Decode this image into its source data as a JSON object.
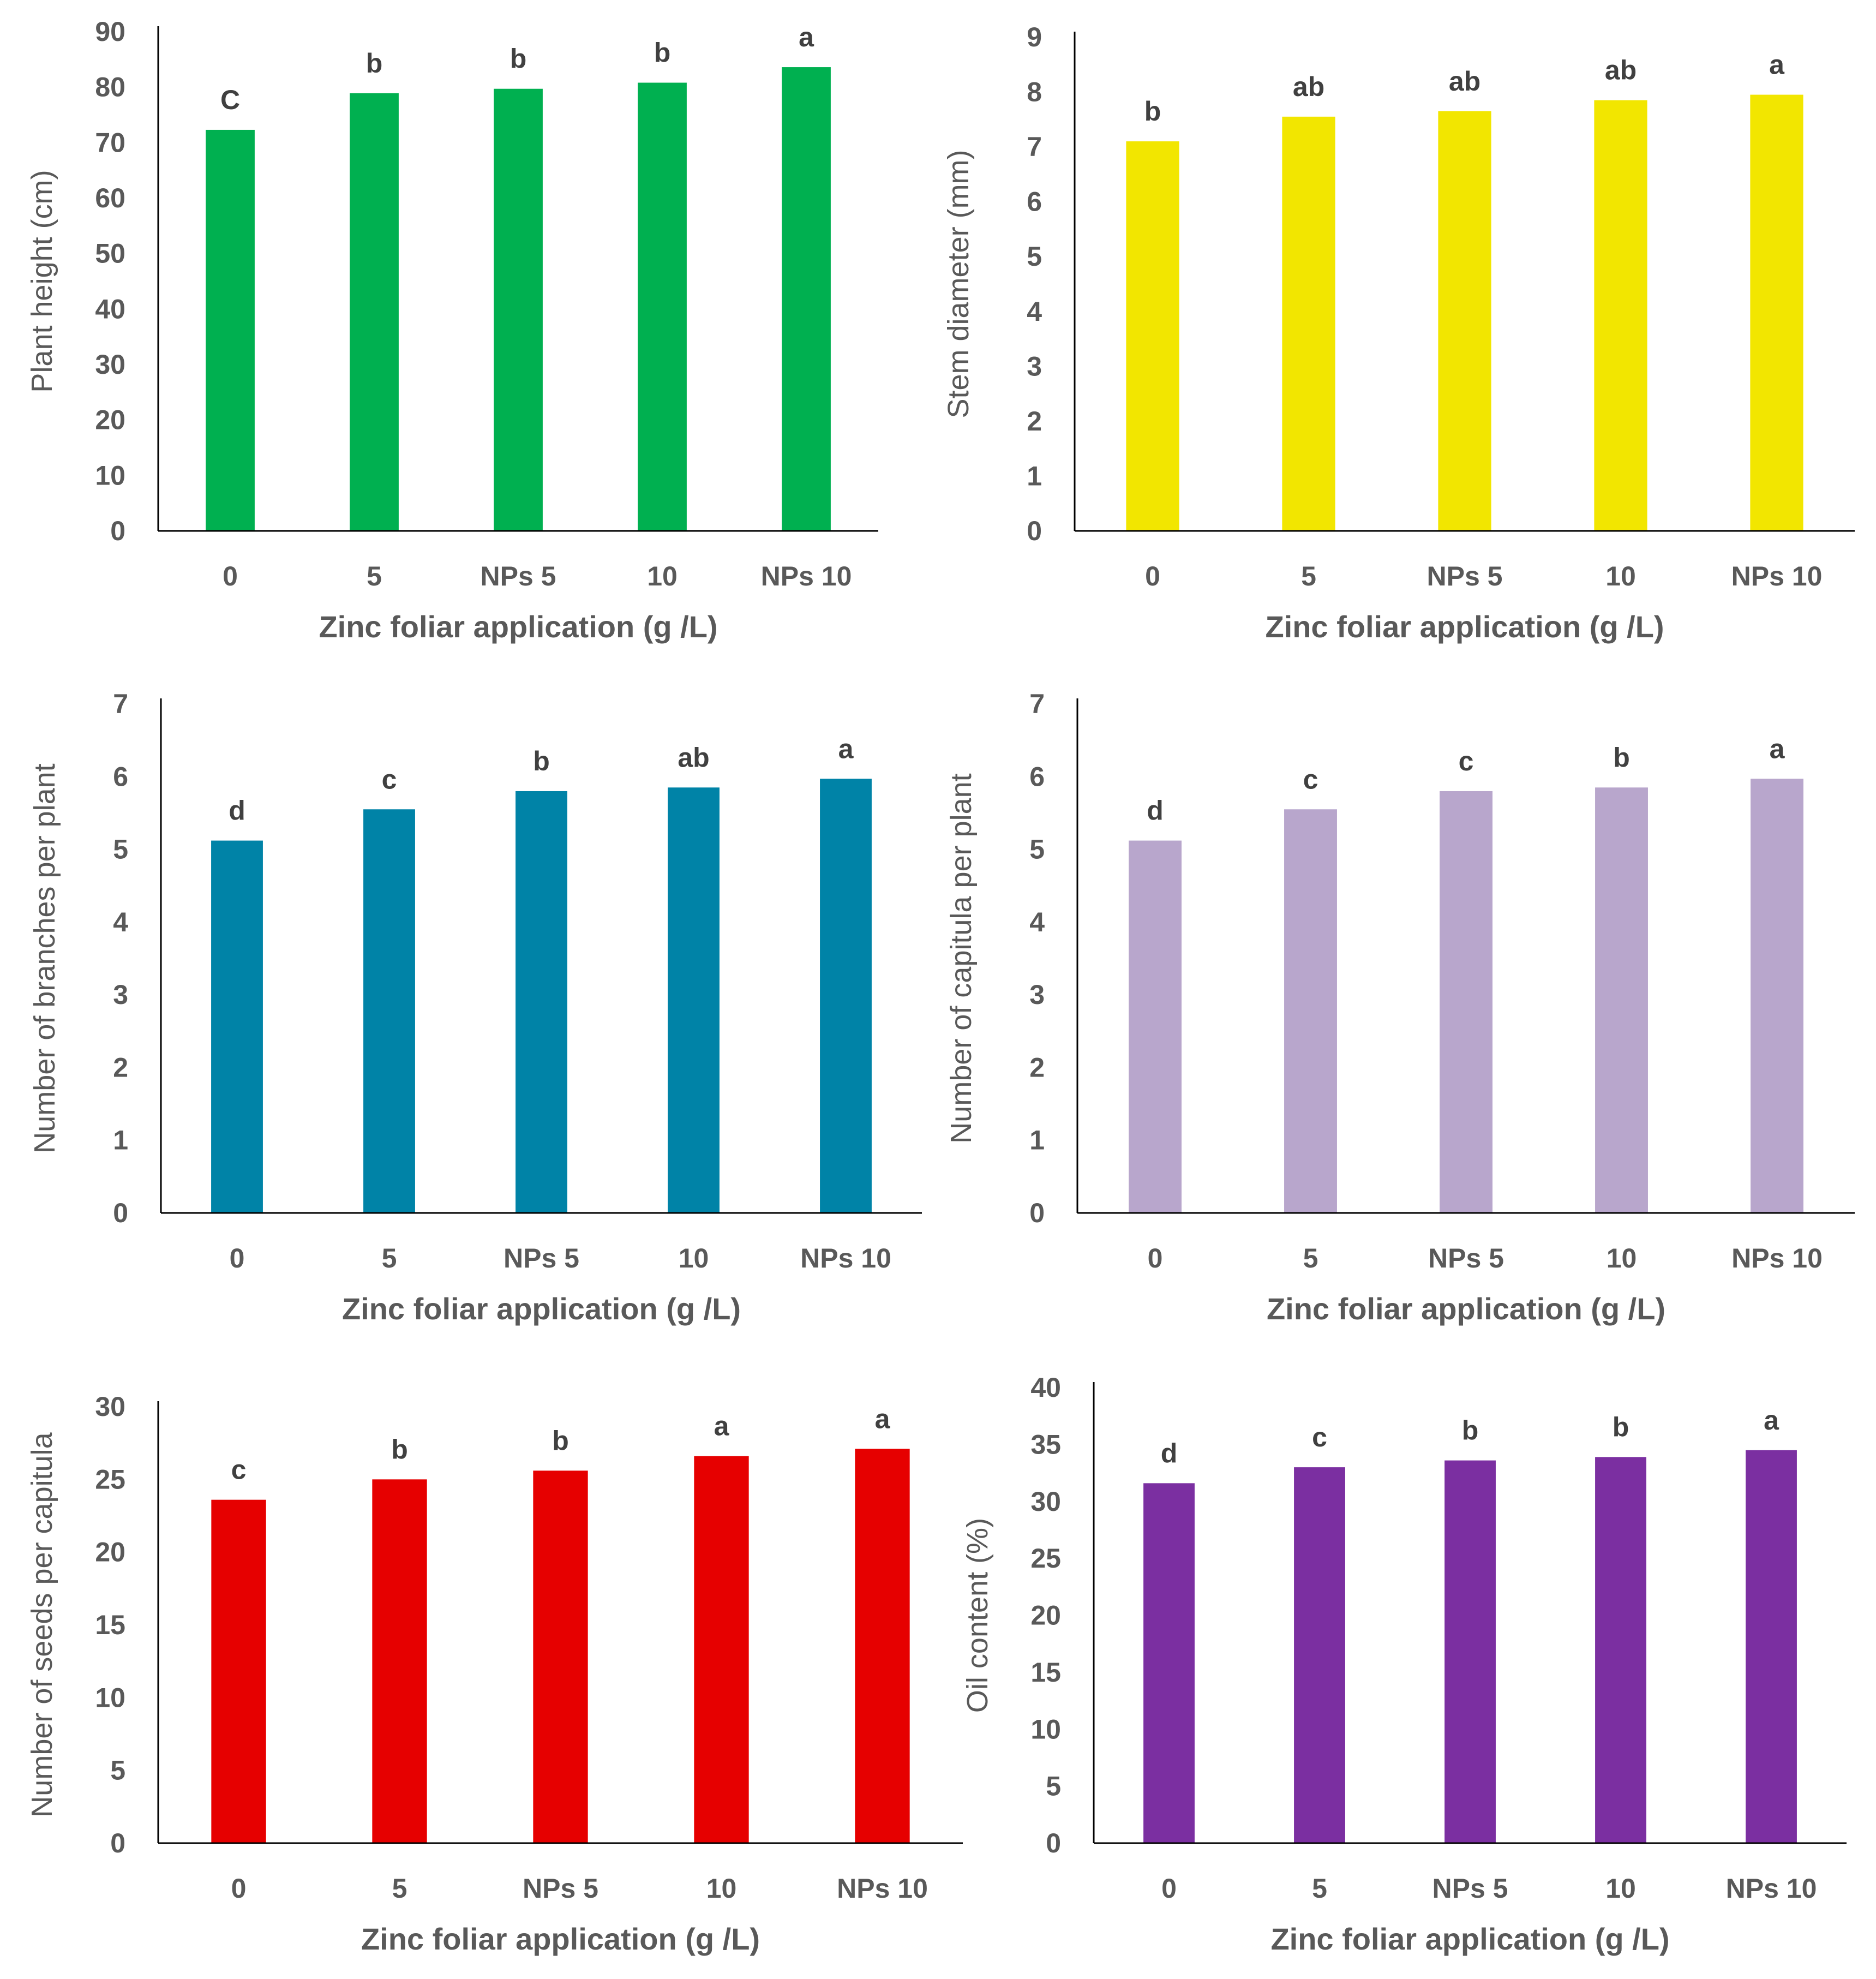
{
  "chart_data": [
    {
      "type": "bar",
      "color": "#00B050",
      "categories": [
        "0",
        "5",
        "NPs 5",
        "10",
        "NPs 10"
      ],
      "values": [
        72.3,
        78.9,
        79.7,
        80.8,
        83.6
      ],
      "significance": [
        "C",
        "b",
        "b",
        "b",
        "a"
      ],
      "ylim": [
        0,
        90
      ],
      "yticks": [
        "0",
        "10",
        "20",
        "30",
        "40",
        "50",
        "60",
        "70",
        "80",
        "90"
      ],
      "xlabel": "Zinc foliar application (g /L)",
      "ylabel": "Plant height (cm)"
    },
    {
      "type": "bar",
      "color": "#F2E600",
      "categories": [
        "0",
        "5",
        "NPs 5",
        "10",
        "NPs 10"
      ],
      "values": [
        7.1,
        7.55,
        7.65,
        7.85,
        7.95
      ],
      "significance": [
        "b",
        "ab",
        "ab",
        "ab",
        "a"
      ],
      "ylim": [
        0,
        9
      ],
      "yticks": [
        "0",
        "1",
        "2",
        "3",
        "4",
        "5",
        "6",
        "7",
        "8",
        "9"
      ],
      "xlabel": "Zinc foliar application (g /L)",
      "ylabel": "Stem diameter (mm)"
    },
    {
      "type": "bar",
      "color": "#0083A7",
      "categories": [
        "0",
        "5",
        "NPs 5",
        "10",
        "NPs 10"
      ],
      "values": [
        5.12,
        5.55,
        5.8,
        5.85,
        5.97
      ],
      "significance": [
        "d",
        "c",
        "b",
        "ab",
        "a"
      ],
      "ylim": [
        0,
        7
      ],
      "yticks": [
        "0",
        "1",
        "2",
        "3",
        "4",
        "5",
        "6",
        "7"
      ],
      "xlabel": "Zinc foliar application (g /L)",
      "ylabel": "Number of branches per plant"
    },
    {
      "type": "bar",
      "color": "#B8A6CC",
      "categories": [
        "0",
        "5",
        "NPs 5",
        "10",
        "NPs 10"
      ],
      "values": [
        5.12,
        5.55,
        5.8,
        5.85,
        5.97
      ],
      "significance": [
        "d",
        "c",
        "c",
        "b",
        "a"
      ],
      "ylim": [
        0,
        7
      ],
      "yticks": [
        "0",
        "1",
        "2",
        "3",
        "4",
        "5",
        "6",
        "7"
      ],
      "xlabel": "Zinc foliar application (g /L)",
      "ylabel": "Number of capitula per plant"
    },
    {
      "type": "bar",
      "color": "#E60000",
      "categories": [
        "0",
        "5",
        "NPs 5",
        "10",
        "NPs 10"
      ],
      "values": [
        23.6,
        25.0,
        25.6,
        26.6,
        27.1
      ],
      "significance": [
        "c",
        "b",
        "b",
        "a",
        "a"
      ],
      "ylim": [
        0,
        30
      ],
      "yticks": [
        "0",
        "5",
        "10",
        "15",
        "20",
        "25",
        "30"
      ],
      "xlabel": "Zinc foliar application (g /L)",
      "ylabel": "Number of seeds per capitula"
    },
    {
      "type": "bar",
      "color": "#7B2FA1",
      "categories": [
        "0",
        "5",
        "NPs 5",
        "10",
        "NPs 10"
      ],
      "values": [
        31.6,
        33.0,
        33.6,
        33.9,
        34.5
      ],
      "significance": [
        "d",
        "c",
        "b",
        "b",
        "a"
      ],
      "ylim": [
        0,
        40
      ],
      "yticks": [
        "0",
        "5",
        "10",
        "15",
        "20",
        "25",
        "30",
        "35",
        "40"
      ],
      "xlabel": "Zinc foliar application (g /L)",
      "ylabel": "Oil content (%)"
    }
  ]
}
